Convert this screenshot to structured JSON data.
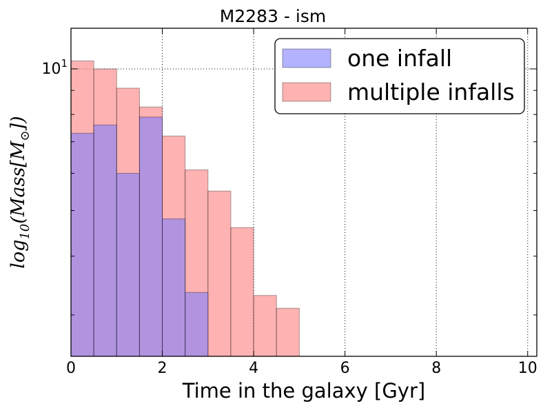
{
  "chart_data": {
    "type": "bar",
    "title": "M2283 - ism",
    "xlabel": "Time in the galaxy [Gyr]",
    "ylabel": "log10(Mass[M☉])",
    "ylabel_parts": {
      "prefix": "log",
      "sub": "10",
      "mid": "(Mass[M",
      "sub2": "⊙",
      "suffix": "])"
    },
    "y_scale": "log",
    "xlim": [
      0,
      10.2
    ],
    "ylim": [
      2.45,
      12.2
    ],
    "x_ticks": [
      0,
      2,
      4,
      6,
      8,
      10
    ],
    "y_tick_label": {
      "base": "10",
      "exp": "1"
    },
    "grid": true,
    "legend_position": "upper-right",
    "bin_width": 0.5,
    "bin_starts": [
      0,
      0.5,
      1.0,
      1.5,
      2.0,
      2.5,
      3.0,
      3.5,
      4.0,
      4.5
    ],
    "series": [
      {
        "name": "multiple infalls",
        "color": "#ff7f7f",
        "values": [
          10.4,
          10.0,
          9.1,
          8.3,
          7.2,
          6.1,
          5.5,
          4.6,
          3.3,
          3.1
        ]
      },
      {
        "name": "one infall",
        "color": "#7f7fff",
        "values": [
          7.3,
          7.6,
          6.0,
          7.9,
          4.8,
          3.35,
          null,
          null,
          null,
          null
        ]
      }
    ],
    "overlap_color": "#c67ab1"
  }
}
